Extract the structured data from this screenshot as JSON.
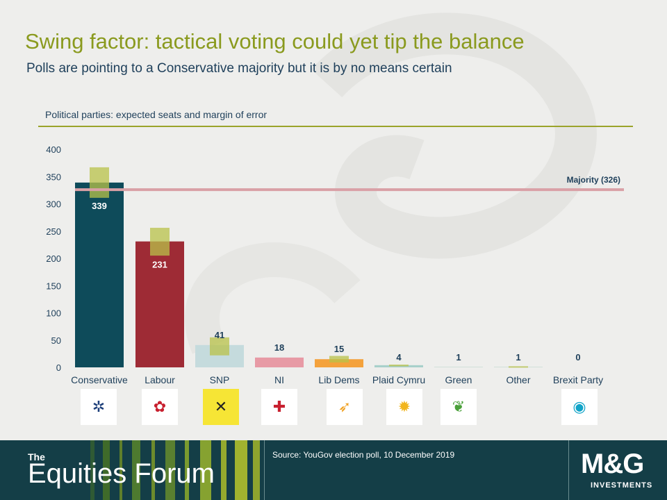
{
  "title": "Swing factor: tactical voting could yet tip the balance",
  "subtitle": "Polls are pointing to a Conservative majority but it is by no means certain",
  "chart_heading": "Political parties: expected seats and margin of error",
  "majority_label": "Majority (326)",
  "source": "Source: YouGov election poll, 10 December 2019",
  "footer": {
    "the": "The",
    "forum": "Equities Forum",
    "brand": "M&G",
    "brand_sub": "INVESTMENTS"
  },
  "colors": {
    "accent": "#8a9a1e",
    "navy": "#1e3f5a",
    "footer_bg": "#143e47",
    "majority_line": "#d9a0a6",
    "error_box": "#b8c24a"
  },
  "logos": [
    {
      "party": "Conservative",
      "icon": "union-flag-tree-icon"
    },
    {
      "party": "Labour",
      "icon": "red-rose-icon"
    },
    {
      "party": "SNP",
      "icon": "snp-saltire-icon"
    },
    {
      "party": "NI",
      "icon": "red-hand-cross-icon"
    },
    {
      "party": "Lib Dems",
      "icon": "bird-icon"
    },
    {
      "party": "Plaid Cymru",
      "icon": "poppy-icon"
    },
    {
      "party": "Green",
      "icon": "leaf-tree-icon"
    },
    {
      "party": "Brexit Party",
      "icon": "brexit-party-icon"
    }
  ],
  "chart_data": {
    "type": "bar",
    "categories": [
      "Conservative",
      "Labour",
      "SNP",
      "NI",
      "Lib Dems",
      "Plaid Cymru",
      "Green",
      "Other",
      "Brexit Party"
    ],
    "values": [
      339,
      231,
      41,
      18,
      15,
      4,
      1,
      1,
      0
    ],
    "value_labels": [
      "339",
      "231",
      "41",
      "18",
      "15",
      "4",
      "1",
      "1",
      "0"
    ],
    "error_ranges": [
      [
        311,
        367
      ],
      [
        205,
        256
      ],
      [
        22,
        55
      ],
      null,
      [
        9,
        21
      ],
      [
        2,
        5
      ],
      null,
      [
        0,
        2
      ],
      null
    ],
    "bar_colors": [
      "#0e4b5a",
      "#9e2b35",
      "#c5dbdd",
      "#e79aa5",
      "#f4a23c",
      "#a8d0cb",
      "#c8dcd4",
      "#c8dcd4",
      "#c8dcd4"
    ],
    "ylim": [
      0,
      400
    ],
    "yticks": [
      0,
      50,
      100,
      150,
      200,
      250,
      300,
      350,
      400
    ],
    "reference_line": 326,
    "grid": false,
    "legend": "none"
  }
}
